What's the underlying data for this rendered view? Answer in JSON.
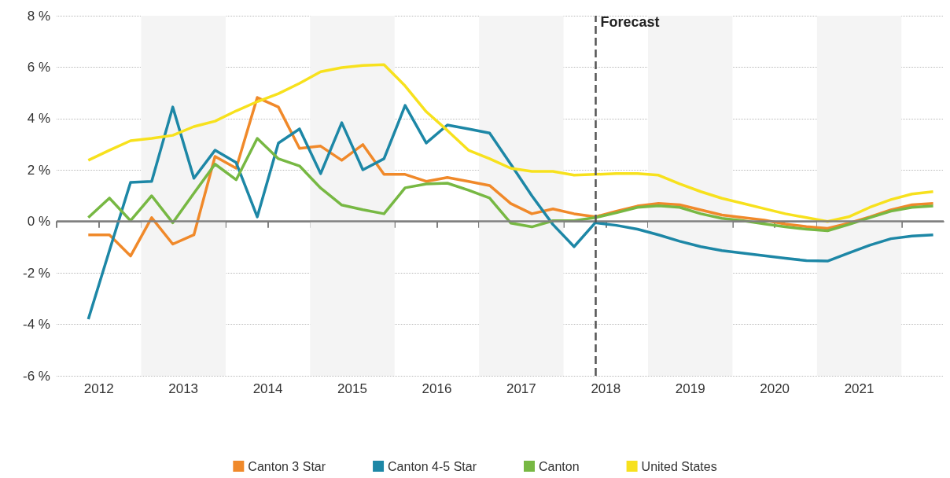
{
  "chart_data": {
    "type": "line",
    "x": [
      2012.375,
      2012.625,
      2012.875,
      2013.125,
      2013.375,
      2013.625,
      2013.875,
      2014.125,
      2014.375,
      2014.625,
      2014.875,
      2015.125,
      2015.375,
      2015.625,
      2015.875,
      2016.125,
      2016.375,
      2016.625,
      2016.875,
      2017.125,
      2017.375,
      2017.625,
      2017.875,
      2018.125,
      2018.375,
      2018.625,
      2018.875,
      2019.125,
      2019.375,
      2019.625,
      2019.875,
      2020.125,
      2020.375,
      2020.625,
      2020.875,
      2021.125,
      2021.375,
      2021.625,
      2021.875,
      2022.125,
      2022.375
    ],
    "series": [
      {
        "name": "Canton 3 Star",
        "color": "#f0892a",
        "values": [
          -0.52,
          -0.52,
          -1.34,
          0.15,
          -0.88,
          -0.52,
          2.53,
          2.07,
          4.82,
          4.45,
          2.84,
          2.93,
          2.38,
          2.99,
          1.83,
          1.83,
          1.56,
          1.71,
          1.56,
          1.4,
          0.7,
          0.3,
          0.49,
          0.3,
          0.18,
          0.4,
          0.6,
          0.7,
          0.65,
          0.45,
          0.25,
          0.15,
          0.05,
          -0.1,
          -0.2,
          -0.27,
          -0.07,
          0.18,
          0.45,
          0.65,
          0.7
        ]
      },
      {
        "name": "Canton 4-5 Star",
        "color": "#1d87a6",
        "values": [
          -3.8,
          -1.13,
          1.52,
          1.56,
          4.45,
          1.68,
          2.77,
          2.29,
          0.18,
          3.05,
          3.6,
          1.86,
          3.84,
          2.01,
          2.44,
          4.51,
          3.05,
          3.75,
          3.6,
          3.44,
          2.23,
          1.0,
          -0.12,
          -0.98,
          -0.05,
          -0.15,
          -0.3,
          -0.52,
          -0.77,
          -0.98,
          -1.13,
          -1.23,
          -1.33,
          -1.43,
          -1.52,
          -1.54,
          -1.23,
          -0.92,
          -0.67,
          -0.57,
          -0.52
        ]
      },
      {
        "name": "Canton",
        "color": "#77b843",
        "values": [
          0.15,
          0.91,
          0.03,
          1.0,
          -0.05,
          1.1,
          2.23,
          1.62,
          3.23,
          2.44,
          2.16,
          1.3,
          0.64,
          0.46,
          0.3,
          1.31,
          1.46,
          1.49,
          1.22,
          0.91,
          -0.06,
          -0.21,
          0.03,
          0.03,
          0.15,
          0.34,
          0.55,
          0.61,
          0.55,
          0.3,
          0.12,
          0.03,
          -0.09,
          -0.21,
          -0.3,
          -0.36,
          -0.12,
          0.15,
          0.4,
          0.55,
          0.6
        ]
      },
      {
        "name": "United States",
        "color": "#f7e11d",
        "values": [
          2.38,
          2.77,
          3.14,
          3.23,
          3.35,
          3.69,
          3.9,
          4.3,
          4.66,
          4.97,
          5.37,
          5.82,
          5.98,
          6.07,
          6.1,
          5.27,
          4.27,
          3.54,
          2.77,
          2.44,
          2.07,
          1.95,
          1.95,
          1.8,
          1.83,
          1.86,
          1.86,
          1.8,
          1.46,
          1.16,
          0.9,
          0.7,
          0.5,
          0.3,
          0.15,
          0.0,
          0.18,
          0.55,
          0.85,
          1.07,
          1.16
        ]
      }
    ],
    "xlim": [
      2012,
      2022.5
    ],
    "xticks": [
      {
        "value": 2012,
        "label": null
      },
      {
        "value": 2012.5,
        "label": "2012"
      },
      {
        "value": 2013,
        "label": null
      },
      {
        "value": 2013.5,
        "label": "2013"
      },
      {
        "value": 2014,
        "label": null
      },
      {
        "value": 2014.5,
        "label": "2014"
      },
      {
        "value": 2015,
        "label": null
      },
      {
        "value": 2015.5,
        "label": "2015"
      },
      {
        "value": 2016,
        "label": null
      },
      {
        "value": 2016.5,
        "label": "2016"
      },
      {
        "value": 2017,
        "label": null
      },
      {
        "value": 2017.5,
        "label": "2017"
      },
      {
        "value": 2018,
        "label": null
      },
      {
        "value": 2018.5,
        "label": "2018"
      },
      {
        "value": 2019,
        "label": null
      },
      {
        "value": 2019.5,
        "label": "2019"
      },
      {
        "value": 2020,
        "label": null
      },
      {
        "value": 2020.5,
        "label": "2020"
      },
      {
        "value": 2021,
        "label": null
      },
      {
        "value": 2021.5,
        "label": "2021"
      },
      {
        "value": 2022,
        "label": null
      }
    ],
    "ylim": [
      -6,
      8
    ],
    "yticks": [
      {
        "value": -6,
        "label": "-6 %"
      },
      {
        "value": -4,
        "label": "-4 %"
      },
      {
        "value": -2,
        "label": "-2 %"
      },
      {
        "value": 0,
        "label": "0 %"
      },
      {
        "value": 2,
        "label": "2 %"
      },
      {
        "value": 4,
        "label": "4 %"
      },
      {
        "value": 6,
        "label": "6 %"
      },
      {
        "value": 8,
        "label": "8 %"
      }
    ],
    "grid": "y",
    "legend": "bottom",
    "marker": "none",
    "line_style": "solid",
    "bands": [
      {
        "axis": "x",
        "from": 2013,
        "to": 2014,
        "color": "#f4f4f4"
      },
      {
        "axis": "x",
        "from": 2015,
        "to": 2016,
        "color": "#f4f4f4"
      },
      {
        "axis": "x",
        "from": 2017,
        "to": 2018,
        "color": "#f4f4f4"
      },
      {
        "axis": "x",
        "from": 2019,
        "to": 2020,
        "color": "#f4f4f4"
      },
      {
        "axis": "x",
        "from": 2021,
        "to": 2022,
        "color": "#f4f4f4"
      }
    ],
    "ref_lines": [
      {
        "axis": "y",
        "value": 0,
        "color": "#808080",
        "line_style": "solid"
      },
      {
        "axis": "x",
        "value": 2018.375,
        "label": "Forecast",
        "color": "#555555",
        "line_style": "dashed"
      }
    ]
  }
}
